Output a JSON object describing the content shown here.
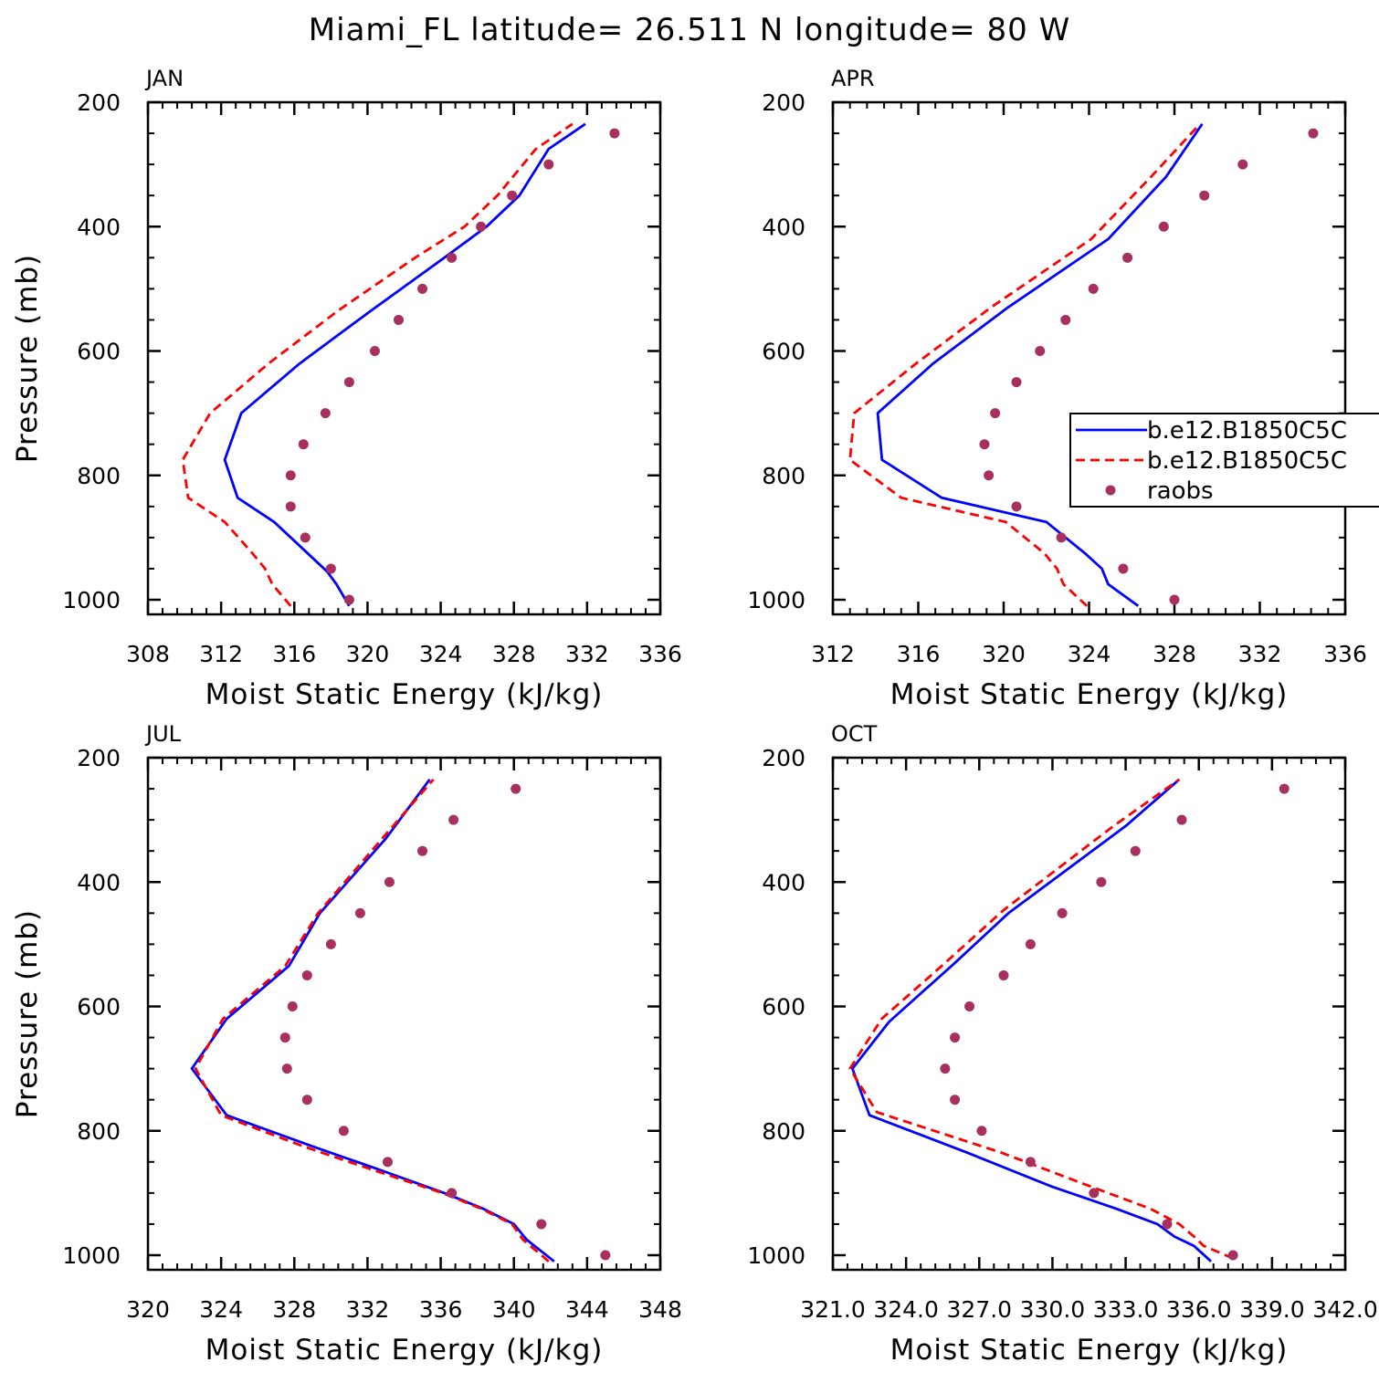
{
  "figure": {
    "title": "Miami_FL  latitude= 26.511 N longitude= 80 W"
  },
  "colors": {
    "model_1": "#0000ff",
    "model_2": "#ff0000",
    "raobs": "#a8305e",
    "axes": "#000000"
  },
  "legend": {
    "placement": "right-middle of APR panel",
    "entries": [
      {
        "label": "b.e12.B1850C5C",
        "style": "solid",
        "color": "#0000ff"
      },
      {
        "label": "b.e12.B1850C5C",
        "style": "dashed",
        "color": "#ff0000"
      },
      {
        "label": "raobs",
        "style": "marker",
        "color": "#a8305e"
      }
    ]
  },
  "chart_data": [
    {
      "type": "line",
      "panel": "JAN",
      "xlabel": "Moist Static Energy (kJ/kg)",
      "ylabel": "Pressure (mb)",
      "xlim": [
        308,
        336
      ],
      "ylim": [
        1000,
        200
      ],
      "y_inverted": true,
      "xticks": [
        "308",
        "312",
        "316",
        "320",
        "324",
        "328",
        "332",
        "336"
      ],
      "yticks": [
        "200",
        "400",
        "600",
        "800",
        "1000"
      ],
      "series": [
        {
          "color": "#0000ff",
          "style": "solid",
          "points": [
            [
              319.0,
              1010
            ],
            [
              318.3,
              975
            ],
            [
              317.8,
              955
            ],
            [
              316.9,
              930
            ],
            [
              314.9,
              875
            ],
            [
              312.9,
              836
            ],
            [
              312.2,
              775
            ],
            [
              313.1,
              700
            ],
            [
              316.3,
              620
            ],
            [
              320.2,
              535
            ],
            [
              324.2,
              450
            ],
            [
              326.5,
              400
            ],
            [
              328.3,
              350
            ],
            [
              329.9,
              275
            ],
            [
              331.9,
              235
            ]
          ]
        },
        {
          "color": "#ff0000",
          "style": "dashed",
          "points": [
            [
              315.8,
              1010
            ],
            [
              314.8,
              975
            ],
            [
              314.4,
              950
            ],
            [
              313.7,
              925
            ],
            [
              312.2,
              875
            ],
            [
              310.2,
              836
            ],
            [
              309.9,
              775
            ],
            [
              311.4,
              700
            ],
            [
              314.6,
              620
            ],
            [
              318.4,
              535
            ],
            [
              322.6,
              450
            ],
            [
              325.3,
              400
            ],
            [
              327.1,
              350
            ],
            [
              329.2,
              275
            ],
            [
              331.2,
              235
            ]
          ]
        },
        {
          "color": "#a8305e",
          "style": "marker",
          "points": [
            [
              319.0,
              1000
            ],
            [
              318.0,
              950
            ],
            [
              316.6,
              900
            ],
            [
              315.8,
              850
            ],
            [
              315.8,
              800
            ],
            [
              316.5,
              750
            ],
            [
              317.7,
              700
            ],
            [
              319.0,
              650
            ],
            [
              320.4,
              600
            ],
            [
              321.7,
              550
            ],
            [
              323.0,
              500
            ],
            [
              324.6,
              450
            ],
            [
              326.2,
              400
            ],
            [
              327.9,
              350
            ],
            [
              329.9,
              300
            ],
            [
              333.5,
              250
            ]
          ]
        }
      ]
    },
    {
      "type": "line",
      "panel": "APR",
      "xlabel": "Moist Static Energy (kJ/kg)",
      "ylabel": "",
      "xlim": [
        312,
        336
      ],
      "ylim": [
        1000,
        200
      ],
      "y_inverted": true,
      "xticks": [
        "312",
        "316",
        "320",
        "324",
        "328",
        "332",
        "336"
      ],
      "yticks": [
        "200",
        "400",
        "600",
        "800",
        "1000"
      ],
      "series": [
        {
          "color": "#0000ff",
          "style": "solid",
          "points": [
            [
              326.3,
              1010
            ],
            [
              324.9,
              975
            ],
            [
              324.6,
              950
            ],
            [
              323.8,
              925
            ],
            [
              322.0,
              875
            ],
            [
              317.1,
              836
            ],
            [
              314.3,
              775
            ],
            [
              314.1,
              700
            ],
            [
              316.7,
              620
            ],
            [
              320.2,
              530
            ],
            [
              324.9,
              420
            ],
            [
              327.6,
              320
            ],
            [
              329.3,
              235
            ]
          ]
        },
        {
          "color": "#ff0000",
          "style": "dashed",
          "points": [
            [
              323.9,
              1010
            ],
            [
              322.8,
              975
            ],
            [
              322.5,
              950
            ],
            [
              321.9,
              925
            ],
            [
              320.1,
              875
            ],
            [
              315.2,
              836
            ],
            [
              312.8,
              775
            ],
            [
              313.0,
              700
            ],
            [
              315.9,
              620
            ],
            [
              319.4,
              530
            ],
            [
              324.1,
              420
            ],
            [
              326.9,
              320
            ],
            [
              329.2,
              235
            ]
          ]
        },
        {
          "color": "#a8305e",
          "style": "marker",
          "points": [
            [
              328.0,
              1000
            ],
            [
              325.6,
              950
            ],
            [
              322.7,
              900
            ],
            [
              320.6,
              850
            ],
            [
              319.3,
              800
            ],
            [
              319.1,
              750
            ],
            [
              319.6,
              700
            ],
            [
              320.6,
              650
            ],
            [
              321.7,
              600
            ],
            [
              322.9,
              550
            ],
            [
              324.2,
              500
            ],
            [
              325.8,
              450
            ],
            [
              327.5,
              400
            ],
            [
              329.4,
              350
            ],
            [
              331.2,
              300
            ],
            [
              334.5,
              250
            ]
          ]
        }
      ]
    },
    {
      "type": "line",
      "panel": "JUL",
      "xlabel": "Moist Static Energy (kJ/kg)",
      "ylabel": "Pressure (mb)",
      "xlim": [
        320,
        348
      ],
      "ylim": [
        1000,
        200
      ],
      "y_inverted": true,
      "xticks": [
        "320",
        "324",
        "328",
        "332",
        "336",
        "340",
        "344",
        "348"
      ],
      "yticks": [
        "200",
        "400",
        "600",
        "800",
        "1000"
      ],
      "series": [
        {
          "color": "#0000ff",
          "style": "solid",
          "points": [
            [
              342.2,
              1010
            ],
            [
              340.7,
              975
            ],
            [
              340.0,
              950
            ],
            [
              338.3,
              925
            ],
            [
              336.2,
              900
            ],
            [
              332.4,
              860
            ],
            [
              329.0,
              825
            ],
            [
              324.3,
              775
            ],
            [
              322.4,
              700
            ],
            [
              324.3,
              620
            ],
            [
              327.7,
              535
            ],
            [
              329.4,
              450
            ],
            [
              333.0,
              330
            ],
            [
              335.4,
              235
            ]
          ]
        },
        {
          "color": "#ff0000",
          "style": "dashed",
          "points": [
            [
              341.9,
              1010
            ],
            [
              340.5,
              975
            ],
            [
              339.9,
              950
            ],
            [
              338.2,
              925
            ],
            [
              336.1,
              900
            ],
            [
              332.0,
              860
            ],
            [
              328.5,
              825
            ],
            [
              324.0,
              775
            ],
            [
              322.6,
              700
            ],
            [
              324.1,
              620
            ],
            [
              327.5,
              535
            ],
            [
              329.3,
              450
            ],
            [
              332.8,
              330
            ],
            [
              335.6,
              235
            ]
          ]
        },
        {
          "color": "#a8305e",
          "style": "marker",
          "points": [
            [
              345.0,
              1000
            ],
            [
              341.5,
              950
            ],
            [
              336.6,
              900
            ],
            [
              333.1,
              850
            ],
            [
              330.7,
              800
            ],
            [
              328.7,
              750
            ],
            [
              327.6,
              700
            ],
            [
              327.5,
              650
            ],
            [
              327.9,
              600
            ],
            [
              328.7,
              550
            ],
            [
              330.0,
              500
            ],
            [
              331.6,
              450
            ],
            [
              333.2,
              400
            ],
            [
              335.0,
              350
            ],
            [
              336.7,
              300
            ],
            [
              340.1,
              250
            ]
          ]
        }
      ]
    },
    {
      "type": "line",
      "panel": "OCT",
      "xlabel": "Moist Static Energy (kJ/kg)",
      "ylabel": "",
      "xlim": [
        321.0,
        342.0
      ],
      "ylim": [
        1000,
        200
      ],
      "y_inverted": true,
      "xticks": [
        "321.0",
        "324.0",
        "327.0",
        "330.0",
        "333.0",
        "336.0",
        "339.0",
        "342.0"
      ],
      "yticks": [
        "200",
        "400",
        "600",
        "800",
        "1000"
      ],
      "series": [
        {
          "color": "#0000ff",
          "style": "solid",
          "points": [
            [
              336.5,
              1010
            ],
            [
              335.8,
              985
            ],
            [
              335.0,
              970
            ],
            [
              334.3,
              950
            ],
            [
              332.6,
              925
            ],
            [
              330.0,
              890
            ],
            [
              326.5,
              835
            ],
            [
              322.5,
              775
            ],
            [
              321.8,
              700
            ],
            [
              323.3,
              625
            ],
            [
              326.0,
              530
            ],
            [
              328.2,
              450
            ],
            [
              333.0,
              310
            ],
            [
              335.2,
              235
            ]
          ]
        },
        {
          "color": "#ff0000",
          "style": "dashed",
          "points": [
            [
              337.4,
              1005
            ],
            [
              336.2,
              985
            ],
            [
              335.8,
              970
            ],
            [
              335.2,
              950
            ],
            [
              334.0,
              925
            ],
            [
              331.6,
              890
            ],
            [
              327.9,
              835
            ],
            [
              322.8,
              770
            ],
            [
              321.7,
              700
            ],
            [
              323.0,
              620
            ],
            [
              325.6,
              530
            ],
            [
              328.0,
              445
            ],
            [
              332.5,
              310
            ],
            [
              335.2,
              235
            ]
          ]
        },
        {
          "color": "#a8305e",
          "style": "marker",
          "points": [
            [
              337.4,
              1000
            ],
            [
              334.7,
              950
            ],
            [
              331.7,
              900
            ],
            [
              329.1,
              850
            ],
            [
              327.1,
              800
            ],
            [
              326.0,
              750
            ],
            [
              325.6,
              700
            ],
            [
              326.0,
              650
            ],
            [
              326.6,
              600
            ],
            [
              328.0,
              550
            ],
            [
              329.1,
              500
            ],
            [
              330.4,
              450
            ],
            [
              332.0,
              400
            ],
            [
              333.4,
              350
            ],
            [
              335.3,
              300
            ],
            [
              339.5,
              250
            ]
          ]
        }
      ]
    }
  ]
}
